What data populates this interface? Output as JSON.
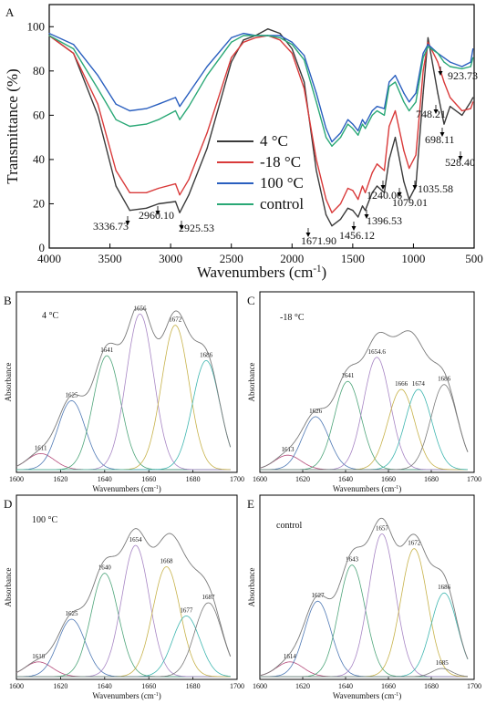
{
  "chart_data": [
    {
      "panel": "A",
      "type": "line",
      "xlabel": "Wavenumbers (cm⁻¹)",
      "ylabel": "Transmittance (%)",
      "xlim": [
        4000,
        500
      ],
      "ylim": [
        0,
        110
      ],
      "x_reversed": true,
      "x_ticks": [
        4000,
        3500,
        3000,
        2500,
        2000,
        1500,
        1000,
        500
      ],
      "y_ticks": [
        0,
        20,
        40,
        60,
        80,
        100
      ],
      "legend_position": "center",
      "series": [
        {
          "name": "4 °C",
          "color": "#3a3a3a",
          "x": [
            4000,
            3800,
            3600,
            3450,
            3336.73,
            3200,
            3100,
            2960.1,
            2925.53,
            2850,
            2700,
            2500,
            2400,
            2300,
            2200,
            2100,
            2000,
            1900,
            1800,
            1720,
            1671.9,
            1600,
            1540,
            1500,
            1456.12,
            1420,
            1396.53,
            1340,
            1300,
            1240.06,
            1200,
            1150,
            1079.01,
            1035.58,
            980,
            920,
            880,
            800,
            748.21,
            698.11,
            600,
            528.4,
            510
          ],
          "y": [
            96,
            88,
            60,
            28,
            17,
            18,
            20,
            21,
            16,
            24,
            45,
            84,
            94,
            96,
            99,
            97,
            90,
            75,
            35,
            15,
            10,
            13,
            18,
            17,
            14,
            19,
            17,
            25,
            28,
            25,
            40,
            50,
            30,
            22,
            28,
            70,
            95,
            70,
            56,
            64,
            60,
            66,
            68
          ]
        },
        {
          "name": "-18 °C",
          "color": "#d93a3a",
          "x": [
            4000,
            3800,
            3600,
            3450,
            3336.73,
            3200,
            3100,
            2960.1,
            2925.53,
            2850,
            2700,
            2500,
            2400,
            2300,
            2200,
            2100,
            2000,
            1900,
            1800,
            1720,
            1671.9,
            1600,
            1540,
            1500,
            1456.12,
            1420,
            1396.53,
            1340,
            1300,
            1240.06,
            1200,
            1150,
            1079.01,
            1035.58,
            980,
            920,
            880,
            800,
            748.21,
            698.11,
            600,
            528.4,
            510
          ],
          "y": [
            96,
            88,
            65,
            35,
            25,
            25,
            27,
            29,
            24,
            31,
            52,
            86,
            93,
            95,
            96,
            94,
            88,
            72,
            40,
            22,
            16,
            20,
            27,
            26,
            22,
            28,
            25,
            34,
            38,
            35,
            55,
            62,
            44,
            36,
            42,
            80,
            93,
            84,
            75,
            68,
            62,
            63,
            66
          ]
        },
        {
          "name": "100 °C",
          "color": "#2a5fbf",
          "x": [
            4000,
            3800,
            3600,
            3450,
            3336.73,
            3200,
            3100,
            2960.1,
            2925.53,
            2850,
            2700,
            2500,
            2400,
            2300,
            2200,
            2100,
            2000,
            1900,
            1800,
            1720,
            1671.9,
            1600,
            1540,
            1500,
            1456.12,
            1420,
            1396.53,
            1340,
            1300,
            1240.06,
            1200,
            1150,
            1079.01,
            1035.58,
            980,
            920,
            880,
            800,
            748.21,
            698.11,
            600,
            528.4,
            510
          ],
          "y": [
            97,
            92,
            78,
            65,
            62,
            63,
            65,
            68,
            64,
            70,
            82,
            95,
            97,
            96,
            96,
            96,
            93,
            87,
            70,
            54,
            48,
            52,
            58,
            56,
            53,
            58,
            56,
            62,
            64,
            63,
            75,
            78,
            70,
            66,
            70,
            88,
            92,
            88,
            86,
            84,
            82,
            84,
            90
          ]
        },
        {
          "name": "control",
          "color": "#2aa876",
          "x": [
            4000,
            3800,
            3600,
            3450,
            3336.73,
            3200,
            3100,
            2960.1,
            2925.53,
            2850,
            2700,
            2500,
            2400,
            2300,
            2200,
            2100,
            2000,
            1900,
            1800,
            1720,
            1671.9,
            1600,
            1540,
            1500,
            1456.12,
            1420,
            1396.53,
            1340,
            1300,
            1240.06,
            1200,
            1150,
            1079.01,
            1035.58,
            980,
            920,
            880,
            800,
            748.21,
            698.11,
            600,
            528.4,
            510
          ],
          "y": [
            96,
            90,
            72,
            58,
            55,
            56,
            58,
            62,
            58,
            64,
            78,
            93,
            96,
            96,
            96,
            95,
            92,
            85,
            66,
            50,
            46,
            50,
            56,
            54,
            51,
            56,
            54,
            60,
            62,
            60,
            73,
            75,
            66,
            62,
            66,
            86,
            91,
            88,
            84,
            82,
            81,
            82,
            86
          ]
        }
      ],
      "annotations": [
        "3336.73",
        "2960.10",
        "2925.53",
        "1671.90",
        "1456.12",
        "1396.53",
        "1240.06",
        "1079.01",
        "1035.58",
        "923.73",
        "748.21",
        "698.11",
        "528.40"
      ]
    },
    {
      "panel": "B",
      "type": "line",
      "label": "4 °C",
      "xlabel": "Wavenumbers (cm⁻¹)",
      "ylabel": "Absorbance",
      "xlim": [
        1600,
        1700
      ],
      "x_ticks": [
        1600,
        1620,
        1640,
        1660,
        1680,
        1700
      ],
      "peaks": [
        {
          "center": 1611,
          "label": "1611",
          "height": 0.1,
          "color": "#b44b7a"
        },
        {
          "center": 1625,
          "label": "1625",
          "height": 0.43,
          "color": "#4f79b5"
        },
        {
          "center": 1641,
          "label": "1641",
          "height": 0.71,
          "color": "#4ea57a"
        },
        {
          "center": 1656,
          "label": "1656",
          "height": 0.97,
          "color": "#a785c4"
        },
        {
          "center": 1672,
          "label": "1672",
          "height": 0.9,
          "color": "#c7b24a"
        },
        {
          "center": 1686,
          "label": "1686",
          "height": 0.68,
          "color": "#3fb6b0"
        }
      ]
    },
    {
      "panel": "C",
      "type": "line",
      "label": "-18 °C",
      "xlabel": "Wavenumbers (cm⁻¹)",
      "ylabel": "Absorbance",
      "xlim": [
        1600,
        1700
      ],
      "x_ticks": [
        1600,
        1620,
        1640,
        1660,
        1680,
        1700
      ],
      "peaks": [
        {
          "center": 1613,
          "label": "1613",
          "height": 0.09,
          "color": "#b44b7a"
        },
        {
          "center": 1626,
          "label": "1626",
          "height": 0.33,
          "color": "#4f79b5"
        },
        {
          "center": 1641,
          "label": "1641",
          "height": 0.55,
          "color": "#4ea57a"
        },
        {
          "center": 1654.6,
          "label": "1654.6",
          "height": 0.7,
          "color": "#a785c4"
        },
        {
          "center": 1666,
          "label": "1666",
          "height": 0.5,
          "color": "#c7b24a"
        },
        {
          "center": 1674,
          "label": "1674",
          "height": 0.5,
          "color": "#3fb6b0"
        },
        {
          "center": 1686,
          "label": "1686",
          "height": 0.53,
          "color": "#7a7a7a"
        }
      ]
    },
    {
      "panel": "D",
      "type": "line",
      "label": "100 °C",
      "xlabel": "Wavenumbers (cm⁻¹)",
      "ylabel": "Absorbance",
      "xlim": [
        1600,
        1700
      ],
      "x_ticks": [
        1600,
        1620,
        1640,
        1660,
        1680,
        1700
      ],
      "peaks": [
        {
          "center": 1610,
          "label": "1610",
          "height": 0.09,
          "color": "#b44b7a"
        },
        {
          "center": 1625,
          "label": "1625",
          "height": 0.35,
          "color": "#4f79b5"
        },
        {
          "center": 1640,
          "label": "1640",
          "height": 0.63,
          "color": "#4ea57a"
        },
        {
          "center": 1654,
          "label": "1654",
          "height": 0.8,
          "color": "#a785c4"
        },
        {
          "center": 1668,
          "label": "1668",
          "height": 0.67,
          "color": "#c7b24a"
        },
        {
          "center": 1677,
          "label": "1677",
          "height": 0.37,
          "color": "#3fb6b0"
        },
        {
          "center": 1687,
          "label": "1687",
          "height": 0.45,
          "color": "#7a7a7a"
        }
      ]
    },
    {
      "panel": "E",
      "type": "line",
      "label": "control",
      "xlabel": "Wavenumbers (cm⁻¹)",
      "ylabel": "Absorbance",
      "xlim": [
        1600,
        1700
      ],
      "x_ticks": [
        1600,
        1620,
        1640,
        1660,
        1680,
        1700
      ],
      "peaks": [
        {
          "center": 1614,
          "label": "1614",
          "height": 0.09,
          "color": "#b44b7a"
        },
        {
          "center": 1627,
          "label": "1627",
          "height": 0.46,
          "color": "#4f79b5"
        },
        {
          "center": 1643,
          "label": "1643",
          "height": 0.68,
          "color": "#4ea57a"
        },
        {
          "center": 1657,
          "label": "1657",
          "height": 0.87,
          "color": "#a785c4"
        },
        {
          "center": 1672,
          "label": "1672",
          "height": 0.78,
          "color": "#c7b24a"
        },
        {
          "center": 1686,
          "label": "1686",
          "height": 0.51,
          "color": "#3fb6b0"
        },
        {
          "center": 1685,
          "label": "1685",
          "height": 0.05,
          "color": "#7a7a7a"
        }
      ]
    }
  ]
}
